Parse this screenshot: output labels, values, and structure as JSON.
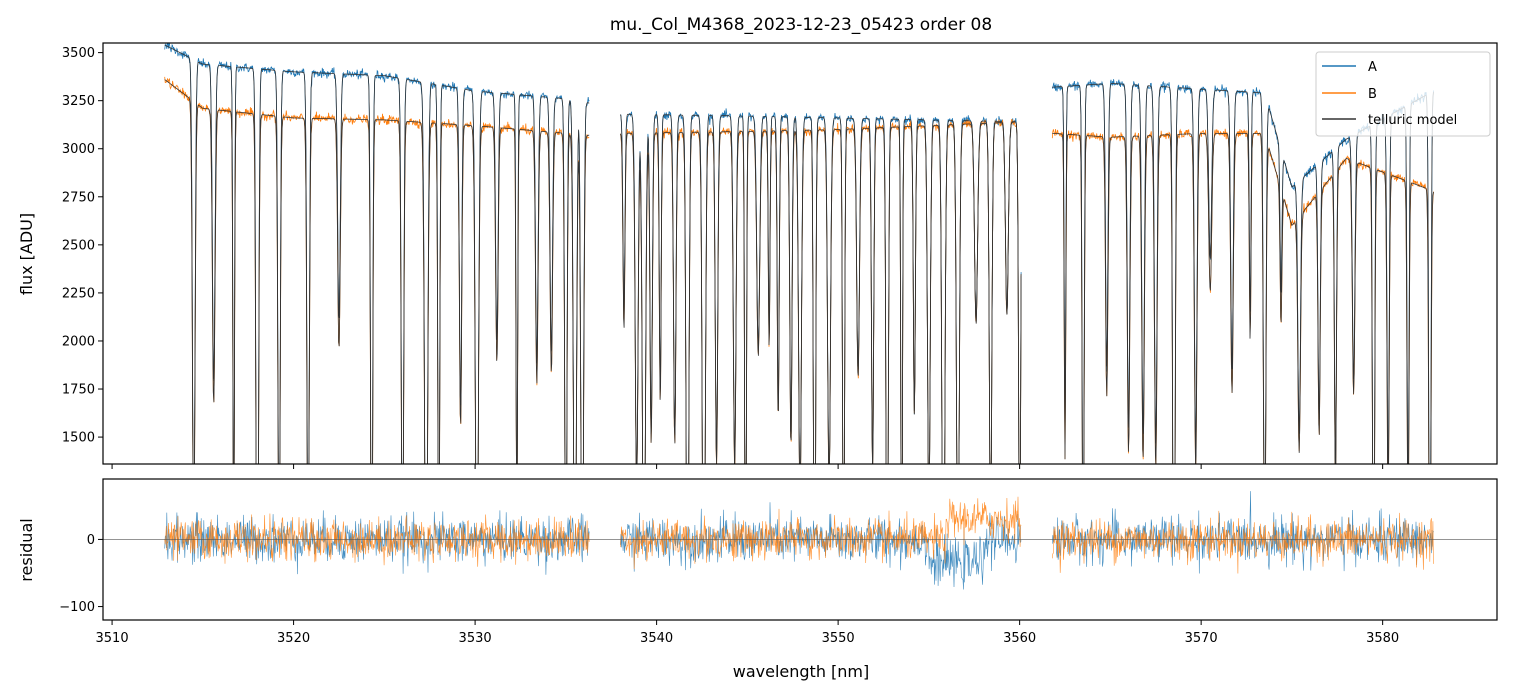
{
  "chart_data": [
    {
      "type": "line",
      "title": "mu._Col_M4368_2023-12-23_05423  order 08",
      "xlabel": "",
      "ylabel": "flux [ADU]",
      "xlim": [
        3509.5,
        3586.3
      ],
      "ylim": [
        1360,
        3550
      ],
      "xticks": [
        3510,
        3520,
        3530,
        3540,
        3550,
        3560,
        3570,
        3580
      ],
      "yticks": [
        1500,
        1750,
        2000,
        2250,
        2500,
        2750,
        3000,
        3250,
        3500
      ],
      "ytick_labels": [
        "1500",
        "1750",
        "2000",
        "2250",
        "2500",
        "2750",
        "3000",
        "3250",
        "3500"
      ],
      "grid": false,
      "legend_position": "top-right",
      "colors": {
        "A": "#1f77b4",
        "B": "#ff7f0e",
        "telluric model": "#333333"
      },
      "series": [
        {
          "name": "A",
          "x_range": [
            3512.9,
            3582.8
          ],
          "gaps": [
            [
              3536.3,
              3538.0
            ],
            [
              3560.1,
              3561.8
            ]
          ],
          "continuum": [
            [
              3512.9,
              3540
            ],
            [
              3515,
              3440
            ],
            [
              3520,
              3400
            ],
            [
              3525,
              3380
            ],
            [
              3530,
              3300
            ],
            [
              3535,
              3260
            ],
            [
              3536.2,
              3240
            ],
            [
              3538,
              3180
            ],
            [
              3545,
              3170
            ],
            [
              3550,
              3160
            ],
            [
              3555,
              3150
            ],
            [
              3560,
              3140
            ],
            [
              3561.8,
              3320
            ],
            [
              3565,
              3340
            ],
            [
              3570,
              3310
            ],
            [
              3573.5,
              3290
            ],
            [
              3575,
              2800
            ],
            [
              3578,
              3050
            ],
            [
              3582.8,
              3300
            ]
          ]
        },
        {
          "name": "B",
          "x_range": [
            3512.9,
            3582.8
          ],
          "gaps": [
            [
              3536.3,
              3538.0
            ],
            [
              3560.1,
              3561.8
            ]
          ],
          "continuum": [
            [
              3512.9,
              3360
            ],
            [
              3515,
              3210
            ],
            [
              3520,
              3160
            ],
            [
              3525,
              3150
            ],
            [
              3530,
              3120
            ],
            [
              3535,
              3080
            ],
            [
              3536.2,
              3070
            ],
            [
              3538,
              3080
            ],
            [
              3545,
              3090
            ],
            [
              3550,
              3100
            ],
            [
              3555,
              3120
            ],
            [
              3560,
              3140
            ],
            [
              3561.8,
              3080
            ],
            [
              3565,
              3060
            ],
            [
              3570,
              3080
            ],
            [
              3573.5,
              3080
            ],
            [
              3575,
              2600
            ],
            [
              3578,
              2950
            ],
            [
              3582.8,
              2780
            ]
          ]
        },
        {
          "name": "telluric model",
          "x_range": [
            3512.9,
            3582.8
          ],
          "gaps": [
            [
              3536.3,
              3538.0
            ],
            [
              3560.1,
              3561.8
            ]
          ]
        }
      ],
      "absorption_lines": [
        3514.5,
        3515.6,
        3516.7,
        3518.0,
        3519.2,
        3520.8,
        3522.5,
        3524.3,
        3526.0,
        3527.3,
        3528.0,
        3529.2,
        3530.1,
        3531.2,
        3532.3,
        3533.4,
        3534.2,
        3535.0,
        3535.5,
        3535.9,
        3538.2,
        3538.9,
        3539.3,
        3539.7,
        3540.2,
        3541.0,
        3541.7,
        3542.6,
        3543.3,
        3544.3,
        3544.9,
        3545.6,
        3546.2,
        3546.7,
        3547.4,
        3547.9,
        3548.7,
        3549.5,
        3550.3,
        3551.1,
        3551.9,
        3552.7,
        3553.5,
        3554.2,
        3555.0,
        3555.8,
        3556.6,
        3557.6,
        3558.4,
        3559.3,
        3560.0,
        3562.5,
        3563.5,
        3564.8,
        3566.0,
        3566.8,
        3567.5,
        3568.5,
        3569.7,
        3570.5,
        3571.7,
        3572.7,
        3573.5,
        3574.4,
        3575.4,
        3576.5,
        3577.4,
        3578.4,
        3579.5,
        3580.3,
        3581.4,
        3582.6
      ]
    },
    {
      "type": "line",
      "title": "",
      "xlabel": "wavelength [nm]",
      "ylabel": "residual",
      "xlim": [
        3509.5,
        3586.3
      ],
      "ylim": [
        -120,
        90
      ],
      "xticks": [
        3510,
        3520,
        3530,
        3540,
        3550,
        3560,
        3570,
        3580
      ],
      "xtick_labels": [
        "3510",
        "3520",
        "3530",
        "3540",
        "3550",
        "3560",
        "3570",
        "3580"
      ],
      "yticks": [
        -100,
        0
      ],
      "ytick_labels": [
        "−100",
        "0"
      ],
      "zero_line": true,
      "grid": false,
      "series": [
        {
          "name": "A",
          "x_range": [
            3512.9,
            3582.8
          ],
          "gaps": [
            [
              3536.3,
              3538.0
            ],
            [
              3560.1,
              3561.8
            ]
          ],
          "noise_std": 28
        },
        {
          "name": "B",
          "x_range": [
            3512.9,
            3582.8
          ],
          "gaps": [
            [
              3536.3,
              3538.0
            ],
            [
              3560.1,
              3561.8
            ]
          ],
          "noise_std": 25
        }
      ]
    }
  ]
}
